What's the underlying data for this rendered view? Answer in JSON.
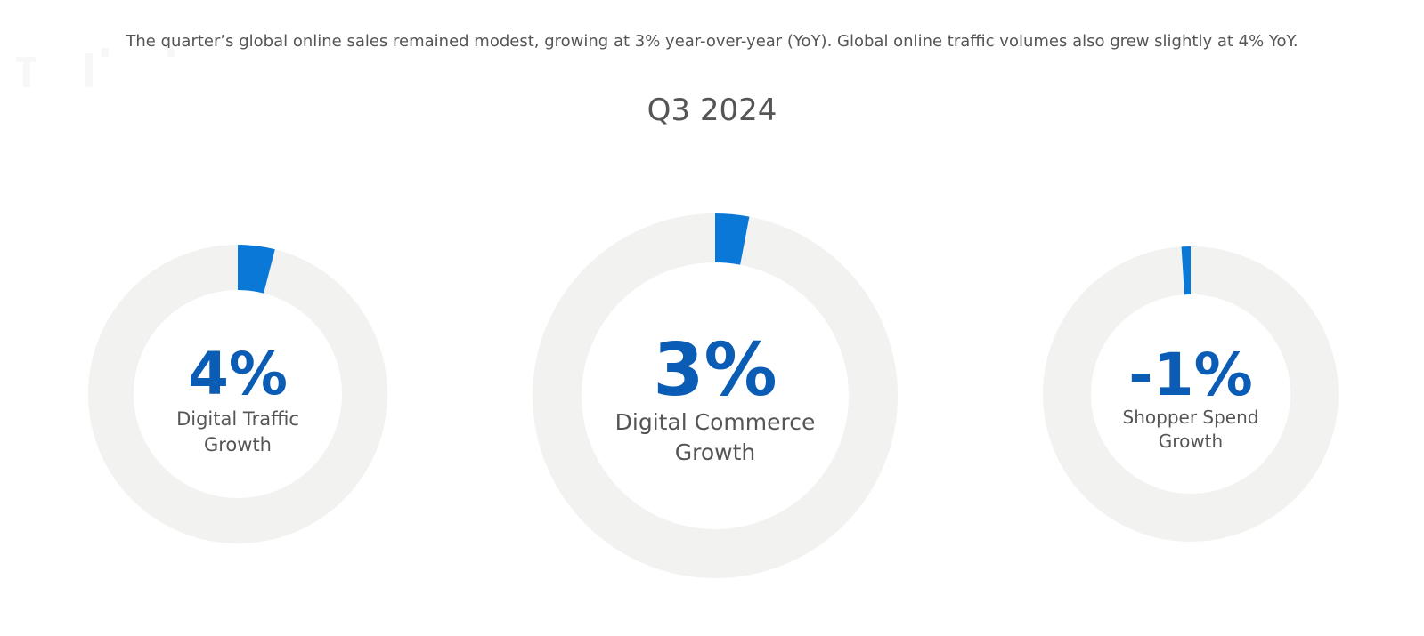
{
  "header": {
    "intro": "The quarter’s global online sales remained modest, growing at 3% year-over-year (YoY). Global online traffic volumes also grew slightly at 4% YoY.",
    "period": "Q3 2024"
  },
  "colors": {
    "accent": "#0A78D7",
    "value_text": "#0B5CB5",
    "track": "#F2F2F1",
    "label_text": "#555555"
  },
  "chart_data": [
    {
      "type": "pie",
      "value": 4,
      "value_label": "4%",
      "label_lines": [
        "Digital Traffic",
        "Growth"
      ]
    },
    {
      "type": "pie",
      "value": 3,
      "value_label": "3%",
      "label_lines": [
        "Digital Commerce",
        "Growth"
      ]
    },
    {
      "type": "pie",
      "value": -1,
      "value_label": "-1%",
      "label_lines": [
        "Shopper Spend",
        "Growth"
      ]
    }
  ]
}
